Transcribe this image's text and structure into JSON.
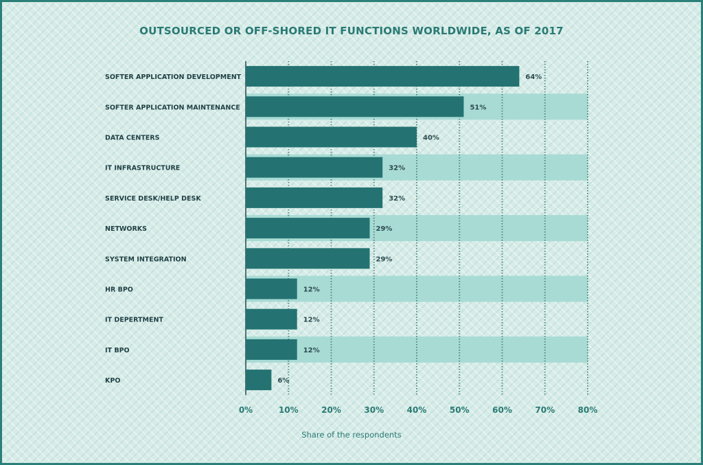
{
  "colors": {
    "bar": "#247372",
    "band": "#a9dbd5",
    "frame": "#2b7f78",
    "text_accent": "#2a7a74",
    "text_dark": "#1f3f44",
    "gridline": "#2d6f6a"
  },
  "chart_data": {
    "type": "bar",
    "orientation": "horizontal",
    "title": "OUTSOURCED OR OFF-SHORED IT FUNCTIONS WORLDWIDE, AS OF 2017",
    "xlabel": "Share of the respondents",
    "ylabel": "",
    "categories": [
      "SOFTER APPLICATION DEVELOPMENT",
      "SOFTER APPLICATION MAINTENANCE",
      "DATA CENTERS",
      "IT INFRASTRUCTURE",
      "SERVICE DESK/HELP DESK",
      "NETWORKS",
      "SYSTEM INTEGRATION",
      "HR BPO",
      "IT DEPERTMENT",
      "IT BPO",
      "KPO"
    ],
    "values": [
      64,
      51,
      40,
      32,
      32,
      29,
      29,
      12,
      12,
      12,
      6
    ],
    "value_labels": [
      "64%",
      "51%",
      "40%",
      "32%",
      "32%",
      "29%",
      "29%",
      "12%",
      "12%",
      "12%",
      "6%"
    ],
    "xlim": [
      0,
      80
    ],
    "ticks": [
      0,
      10,
      20,
      30,
      40,
      50,
      60,
      70,
      80
    ],
    "tick_labels": [
      "0%",
      "10%",
      "20%",
      "30%",
      "40%",
      "50%",
      "60%",
      "70%",
      "80%"
    ],
    "grid": true,
    "legend": "none"
  }
}
